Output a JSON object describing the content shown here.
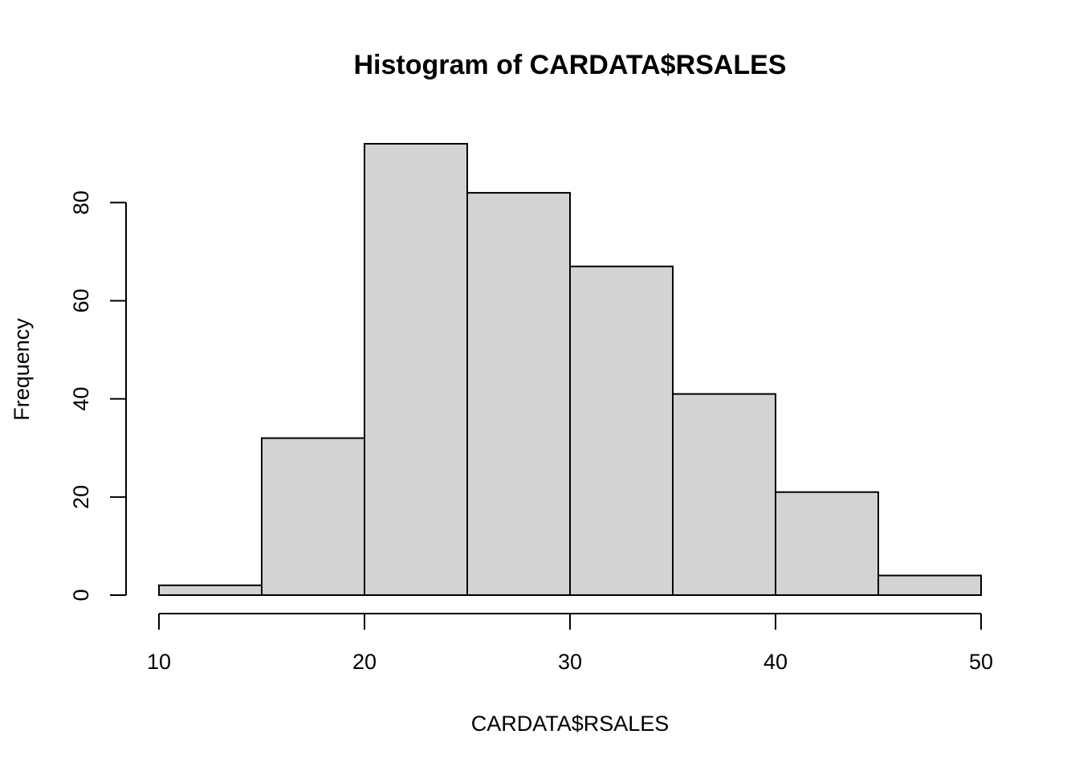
{
  "chart_data": {
    "type": "bar",
    "title": "Histogram of CARDATA$RSALES",
    "xlabel": "CARDATA$RSALES",
    "ylabel": "Frequency",
    "bins": [
      {
        "from": 10,
        "to": 15,
        "count": 2
      },
      {
        "from": 15,
        "to": 20,
        "count": 32
      },
      {
        "from": 20,
        "to": 25,
        "count": 92
      },
      {
        "from": 25,
        "to": 30,
        "count": 82
      },
      {
        "from": 30,
        "to": 35,
        "count": 67
      },
      {
        "from": 35,
        "to": 40,
        "count": 41
      },
      {
        "from": 40,
        "to": 45,
        "count": 21
      },
      {
        "from": 45,
        "to": 50,
        "count": 4
      }
    ],
    "xlim": [
      10,
      50
    ],
    "ylim": [
      0,
      92
    ],
    "x_ticks": [
      10,
      20,
      30,
      40,
      50
    ],
    "y_ticks": [
      0,
      20,
      40,
      60,
      80
    ],
    "grid": false,
    "bar_color": "#d3d3d3",
    "edge_color": "#000000"
  }
}
